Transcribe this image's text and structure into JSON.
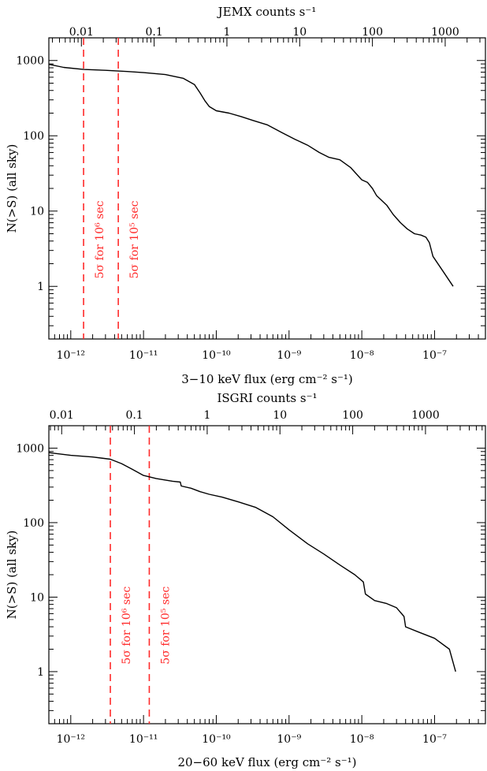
{
  "chart_data": [
    {
      "type": "line",
      "xscale": "log",
      "yscale": "log",
      "xlim": [
        5e-13,
        5e-07
      ],
      "ylim": [
        0.2,
        2000
      ],
      "xlabel": "3−10 keV flux (erg cm⁻² s⁻¹)",
      "ylabel": "N(>S) (all  sky)",
      "top_axis": {
        "label": "JEMX counts s⁻¹",
        "tick_labels": [
          "0.01",
          "0.1",
          "1",
          "10",
          "100",
          "1000"
        ],
        "tick_flux": [
          1.4e-12,
          1.4e-11,
          1.4e-10,
          1.4e-09,
          1.4e-08,
          1.4e-07
        ]
      },
      "bottom_tick_labels": [
        "10⁻¹²",
        "10⁻¹¹",
        "10⁻¹⁰",
        "10⁻⁹",
        "10⁻⁸",
        "10⁻⁷"
      ],
      "left_tick_labels": [
        "1",
        "10",
        "100",
        "1000"
      ],
      "series": [
        {
          "x": [
            5e-13,
            8e-13,
            1.5e-12,
            3e-12,
            6e-12,
            1e-11,
            2e-11,
            3.5e-11,
            5e-11,
            6e-11,
            7e-11,
            8e-11,
            1e-10,
            1.5e-10,
            2.2e-10,
            3.2e-10,
            5e-10,
            8e-10,
            1.2e-09,
            1.8e-09,
            2.6e-09,
            3.5e-09,
            5e-09,
            7e-09,
            1e-08,
            1.2e-08,
            1.4e-08,
            1.6e-08,
            2.2e-08,
            2.7e-08,
            3.4e-08,
            4.2e-08,
            5.3e-08,
            6.5e-08,
            7.6e-08,
            8.5e-08,
            9.5e-08,
            1.3e-07,
            1.8e-07
          ],
          "y": [
            890,
            810,
            760,
            740,
            715,
            690,
            650,
            580,
            480,
            370,
            290,
            245,
            215,
            200,
            180,
            160,
            140,
            110,
            90,
            75,
            60,
            52,
            48,
            38,
            26,
            24,
            20,
            16,
            12,
            9,
            7,
            5.8,
            5.0,
            4.8,
            4.5,
            3.8,
            2.5,
            1.6,
            1
          ]
        }
      ],
      "limits": [
        {
          "flux": 1.5e-12,
          "label": "5σ for 10⁶ sec"
        },
        {
          "flux": 4.5e-12,
          "label": "5σ for 10⁵ sec"
        }
      ]
    },
    {
      "type": "line",
      "xscale": "log",
      "yscale": "log",
      "xlim": [
        5e-13,
        5e-07
      ],
      "ylim": [
        0.2,
        2000
      ],
      "xlabel": "20−60 keV flux (erg cm⁻² s⁻¹)",
      "ylabel": "N(>S) (all  sky)",
      "top_axis": {
        "label": "ISGRI counts s⁻¹",
        "tick_labels": [
          "0.01",
          "0.1",
          "1",
          "10",
          "100",
          "1000"
        ],
        "tick_flux": [
          7.5e-13,
          7.5e-12,
          7.5e-11,
          7.5e-10,
          7.5e-09,
          7.5e-08
        ]
      },
      "bottom_tick_labels": [
        "10⁻¹²",
        "10⁻¹¹",
        "10⁻¹⁰",
        "10⁻⁹",
        "10⁻⁸",
        "10⁻⁷"
      ],
      "left_tick_labels": [
        "1",
        "10",
        "100",
        "1000"
      ],
      "series": [
        {
          "x": [
            5e-13,
            1e-12,
            2e-12,
            3.5e-12,
            5e-12,
            7e-12,
            1e-11,
            1.5e-11,
            2.5e-11,
            3.2e-11,
            3.3e-11,
            4.5e-11,
            6e-11,
            8e-11,
            1.2e-10,
            2e-10,
            3.5e-10,
            6e-10,
            1e-09,
            1.8e-09,
            3e-09,
            5e-09,
            8e-09,
            1.05e-08,
            1.12e-08,
            1.5e-08,
            2.2e-08,
            3e-08,
            3.8e-08,
            4e-08,
            6e-08,
            1e-07,
            1.6e-07,
            1.95e-07
          ],
          "y": [
            870,
            800,
            760,
            710,
            620,
            520,
            430,
            390,
            360,
            350,
            310,
            290,
            260,
            240,
            220,
            190,
            160,
            120,
            80,
            52,
            38,
            27,
            20,
            16,
            11,
            9,
            8.2,
            7.2,
            5.5,
            4,
            3.4,
            2.8,
            2.0,
            1
          ]
        }
      ],
      "limits": [
        {
          "flux": 3.5e-12,
          "label": "5σ for 10⁶ sec"
        },
        {
          "flux": 1.2e-11,
          "label": "5σ for 10⁵ sec"
        }
      ]
    }
  ]
}
